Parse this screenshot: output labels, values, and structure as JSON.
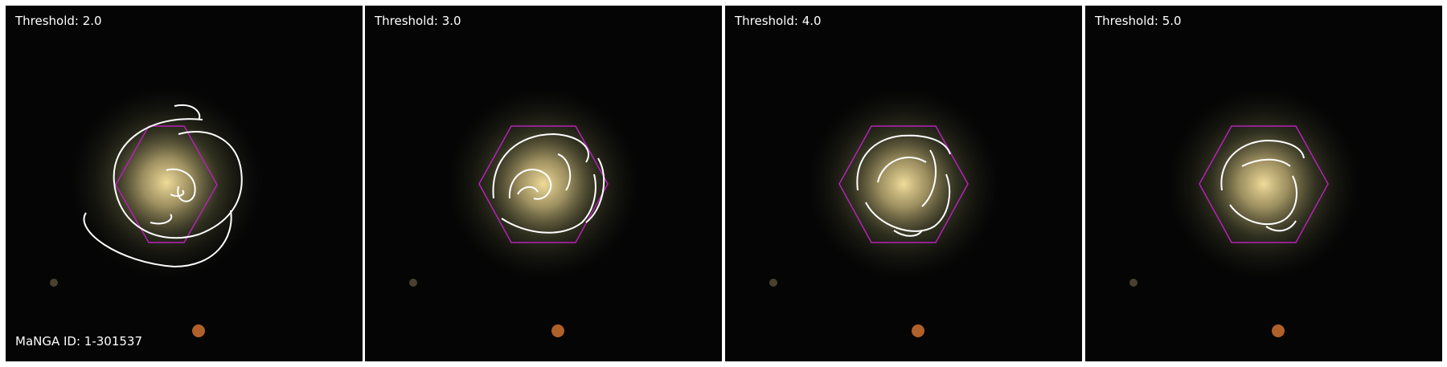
{
  "panels": [
    {
      "threshold_label": "Threshold: 2.0"
    },
    {
      "threshold_label": "Threshold: 3.0"
    },
    {
      "threshold_label": "Threshold: 4.0"
    },
    {
      "threshold_label": "Threshold: 5.0"
    }
  ],
  "manga_id_label": "MaNGA ID: 1-301537",
  "colors": {
    "background": "#050505",
    "contour": "#ffffff",
    "hexagon": "#b522b5",
    "galaxy_core": "#e8d08a"
  }
}
